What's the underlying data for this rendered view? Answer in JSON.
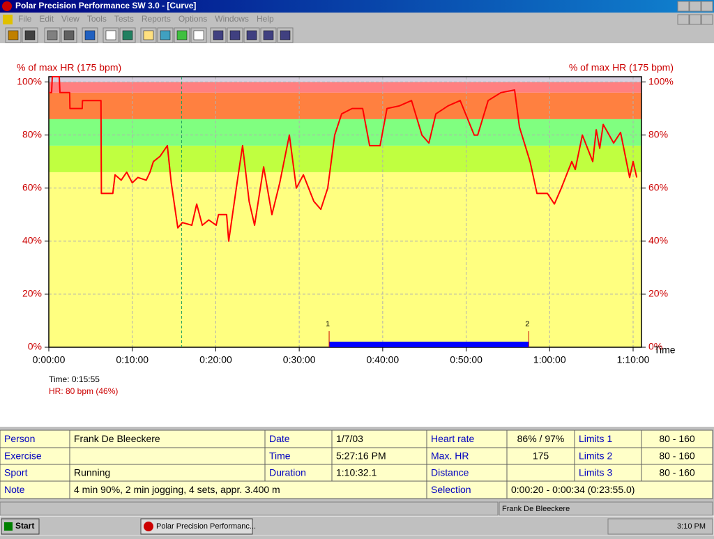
{
  "window": {
    "title": "Polar Precision Performance SW 3.0 - [Curve]",
    "menu": [
      "File",
      "Edit",
      "View",
      "Tools",
      "Tests",
      "Reports",
      "Options",
      "Windows",
      "Help"
    ]
  },
  "chart_data": {
    "type": "line",
    "y_label": "% of max HR (175 bpm)",
    "y2_label": "% of max HR (175 bpm)",
    "x_label": "Time",
    "x": [
      0,
      20,
      25,
      75,
      80,
      150,
      152,
      240,
      242,
      375,
      378,
      460,
      476,
      520,
      560,
      600,
      640,
      700,
      727,
      752,
      800,
      852,
      880,
      927,
      960,
      1028,
      1063,
      1103,
      1150,
      1203,
      1220,
      1278,
      1293,
      1353,
      1393,
      1440,
      1479,
      1544,
      1604,
      1660,
      1729,
      1779,
      1830,
      1905,
      1955,
      2005,
      2055,
      2105,
      2180,
      2256,
      2306,
      2381,
      2431,
      2520,
      2607,
      2682,
      2732,
      2782,
      2870,
      2957,
      3058,
      3083,
      3158,
      3250,
      3348,
      3383,
      3459,
      3509,
      3584,
      3634,
      3684,
      3759,
      3784,
      3835,
      3910,
      3935,
      3960,
      3985,
      4060,
      4110,
      4175,
      4200,
      4226
    ],
    "values": [
      96,
      96,
      102,
      102,
      96,
      96,
      90,
      90,
      93,
      93,
      58,
      58,
      65,
      63,
      66,
      62,
      64,
      63,
      66,
      70,
      72,
      76,
      62,
      45,
      47,
      46,
      54,
      46,
      48,
      46,
      50,
      50,
      40,
      62,
      76,
      55,
      46,
      68,
      50,
      62,
      80,
      60,
      65,
      55,
      52,
      60,
      80,
      88,
      90,
      90,
      76,
      76,
      90,
      91,
      93,
      80,
      77,
      88,
      91,
      93,
      80,
      80,
      93,
      96,
      97,
      83,
      70,
      58,
      58,
      54,
      60,
      70,
      67,
      80,
      70,
      82,
      75,
      84,
      77,
      81,
      64,
      70,
      64
    ],
    "color": "#ff0000",
    "xlim": [
      0,
      4260
    ],
    "xticks": [
      {
        "value": 0,
        "label": "0:00:00"
      },
      {
        "value": 600,
        "label": "0:10:00"
      },
      {
        "value": 1200,
        "label": "0:20:00"
      },
      {
        "value": 1800,
        "label": "0:30:00"
      },
      {
        "value": 2400,
        "label": "0:40:00"
      },
      {
        "value": 3000,
        "label": "0:50:00"
      },
      {
        "value": 3600,
        "label": "1:00:00"
      },
      {
        "value": 4200,
        "label": "1:10:00"
      }
    ],
    "ylim": [
      0,
      102
    ],
    "yticks": [
      {
        "value": 0,
        "label": "0%"
      },
      {
        "value": 20,
        "label": "20%"
      },
      {
        "value": 40,
        "label": "40%"
      },
      {
        "value": 60,
        "label": "60%"
      },
      {
        "value": 80,
        "label": "80%"
      },
      {
        "value": 100,
        "label": "100%"
      }
    ],
    "y2lim": [
      0,
      102
    ],
    "y2ticks": [
      {
        "value": 0,
        "label": "0%"
      },
      {
        "value": 20,
        "label": "20%"
      },
      {
        "value": 40,
        "label": "40%"
      },
      {
        "value": 60,
        "label": "60%"
      },
      {
        "value": 80,
        "label": "80%"
      },
      {
        "value": 100,
        "label": "100%"
      }
    ],
    "grid": true,
    "zones": [
      {
        "from": 0,
        "to": 66,
        "color": "#ffff80"
      },
      {
        "from": 66,
        "to": 76,
        "color": "#c0ff40"
      },
      {
        "from": 76,
        "to": 86,
        "color": "#80ff80"
      },
      {
        "from": 86,
        "to": 96,
        "color": "#ff8040"
      },
      {
        "from": 96,
        "to": 100,
        "color": "#ff8080"
      },
      {
        "from": 100,
        "to": 102,
        "color": "#d8d0e0"
      }
    ],
    "cursor": 955,
    "selection": {
      "start": 2015,
      "end": 3450,
      "labels": [
        "1",
        "2"
      ],
      "color": "#0000ff"
    },
    "readout": [
      "Time: 0:15:55",
      "HR: 80 bpm (46%)"
    ]
  },
  "info_table": {
    "rows": [
      [
        "Person",
        "Frank De Bleeckere",
        "Date",
        "1/7/03",
        "Heart rate",
        "86% / 97%",
        "Limits 1",
        "80 - 160"
      ],
      [
        "Exercise",
        null,
        "Time",
        "5:27:16 PM",
        "Max. HR",
        "175",
        "Limits 2",
        "80 - 160"
      ],
      [
        "Sport",
        "Running",
        "Duration",
        "1:10:32.1",
        "Distance",
        null,
        "Limits 3",
        "80 - 160"
      ],
      [
        "Note",
        "4 min 90%, 2 min jogging, 4 sets, appr. 3.400 m",
        "Selection",
        "0:00:20 - 0:00:34 (0:23:55.0)"
      ]
    ]
  },
  "status_bar": {
    "user": "Frank De Bleeckere"
  },
  "taskbar": {
    "start": "Start",
    "task": "Polar Precision Performanc...",
    "clock": "3:10 PM"
  }
}
